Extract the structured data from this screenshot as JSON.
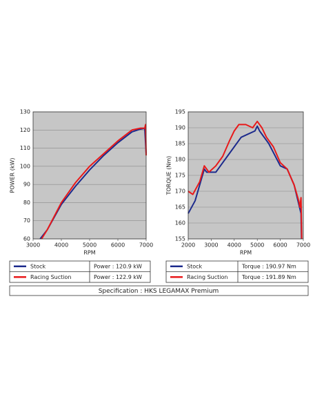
{
  "chart_data": [
    {
      "type": "line",
      "ylabel": "POWER (kW)",
      "xlabel": "RPM",
      "xlim": [
        3000,
        7000
      ],
      "xticks": [
        3000,
        4000,
        5000,
        6000,
        7000
      ],
      "ylim": [
        60,
        130
      ],
      "yticks": [
        60,
        70,
        80,
        90,
        100,
        110,
        120,
        130
      ],
      "grid": true,
      "series": [
        {
          "name": "Stock",
          "color": "#1c2a8c",
          "x": [
            3250,
            3500,
            4000,
            4500,
            5000,
            5500,
            6000,
            6500,
            6800,
            6950,
            7000
          ],
          "values": [
            60,
            65,
            79,
            89,
            98,
            106,
            113,
            119,
            120.5,
            120.9,
            107
          ]
        },
        {
          "name": "Racing Suction",
          "color": "#e8191a",
          "x": [
            3300,
            3500,
            4000,
            4500,
            5000,
            5500,
            6000,
            6500,
            6800,
            6950,
            6980,
            7000
          ],
          "values": [
            60,
            65,
            80,
            91,
            100,
            107,
            114,
            120,
            121,
            121,
            123,
            106
          ]
        }
      ],
      "legend_values": [
        "Power : 120.9 kW",
        "Power : 122.9 kW"
      ]
    },
    {
      "type": "line",
      "ylabel": "TORQUE (Nm)",
      "xlabel": "RPM",
      "xlim": [
        2000,
        7000
      ],
      "xticks": [
        2000,
        3000,
        4000,
        5000,
        6000,
        7000
      ],
      "ylim": [
        155,
        195
      ],
      "yticks": [
        155,
        160,
        165,
        170,
        175,
        180,
        185,
        190,
        195
      ],
      "grid": true,
      "series": [
        {
          "name": "Stock",
          "color": "#1c2a8c",
          "x": [
            2000,
            2300,
            2500,
            2700,
            2800,
            3000,
            3200,
            3400,
            3700,
            4000,
            4300,
            4600,
            4900,
            5000,
            5100,
            5300,
            5500,
            6000,
            6300,
            6600,
            6800,
            6900,
            6920
          ],
          "values": [
            163,
            167,
            172,
            177,
            176,
            176,
            176,
            178,
            181,
            184,
            187,
            188,
            189,
            190.5,
            189,
            187,
            185,
            178,
            177,
            172,
            166,
            163,
            155
          ]
        },
        {
          "name": "Racing Suction",
          "color": "#e8191a",
          "x": [
            2000,
            2200,
            2500,
            2700,
            2900,
            3200,
            3500,
            3800,
            4000,
            4200,
            4500,
            4800,
            5000,
            5200,
            5400,
            5700,
            6000,
            6300,
            6600,
            6800,
            6850,
            6900,
            6930
          ],
          "values": [
            170,
            169,
            173,
            178,
            176,
            178,
            181,
            186,
            189,
            191,
            191,
            190,
            192,
            190,
            187,
            184,
            179,
            177,
            172,
            167,
            165,
            168,
            155
          ]
        }
      ],
      "legend_values": [
        "Torque : 190.97 Nm",
        "Torque : 191.89 Nm"
      ]
    }
  ],
  "specification": "Specification : HKS LEGAMAX Premium"
}
